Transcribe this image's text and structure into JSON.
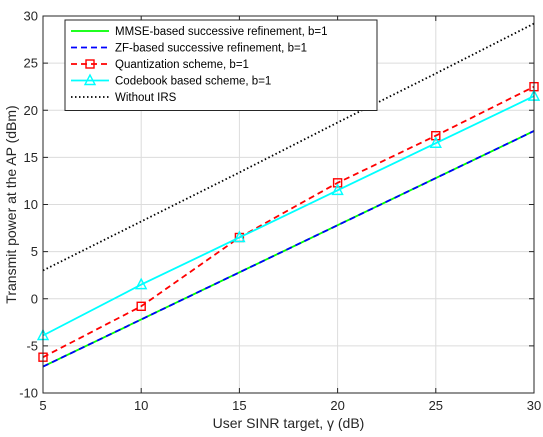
{
  "chart_data": {
    "type": "line",
    "title": "",
    "xlabel": "User SINR target, γ (dB)",
    "ylabel": "Transmit power at the AP (dBm)",
    "xlim": [
      5,
      30
    ],
    "ylim": [
      -10,
      30
    ],
    "xticks": [
      5,
      10,
      15,
      20,
      25,
      30
    ],
    "yticks": [
      -10,
      -5,
      0,
      5,
      10,
      15,
      20,
      25,
      30
    ],
    "grid": true,
    "legend_position": "top-left",
    "series": [
      {
        "name": "MMSE-based successive refinement, b=1",
        "color": "#00ff00",
        "dash": "solid",
        "marker": "none",
        "x": [
          5,
          10,
          15,
          20,
          25,
          30
        ],
        "y": [
          -7.2,
          -2.2,
          2.8,
          7.8,
          12.8,
          17.8
        ]
      },
      {
        "name": "ZF-based successive refinement, b=1",
        "color": "#0000ff",
        "dash": "dashed",
        "marker": "none",
        "x": [
          5,
          10,
          15,
          20,
          25,
          30
        ],
        "y": [
          -7.2,
          -2.2,
          2.8,
          7.8,
          12.8,
          17.8
        ]
      },
      {
        "name": "Quantization scheme, b=1",
        "color": "#ff0000",
        "dash": "dashed",
        "marker": "square",
        "x": [
          5,
          10,
          15,
          20,
          25,
          30
        ],
        "y": [
          -6.2,
          -0.8,
          6.5,
          12.3,
          17.3,
          22.5
        ]
      },
      {
        "name": "Codebook based scheme, b=1",
        "color": "#00ffff",
        "dash": "solid",
        "marker": "triangle",
        "x": [
          5,
          10,
          15,
          20,
          25,
          30
        ],
        "y": [
          -3.9,
          1.5,
          6.5,
          11.5,
          16.5,
          21.5
        ]
      },
      {
        "name": "Without IRS",
        "color": "#000000",
        "dash": "dotted",
        "marker": "none",
        "x": [
          5,
          10,
          15,
          20,
          25,
          30
        ],
        "y": [
          3.0,
          8.2,
          13.4,
          18.7,
          23.9,
          29.2
        ]
      }
    ]
  }
}
